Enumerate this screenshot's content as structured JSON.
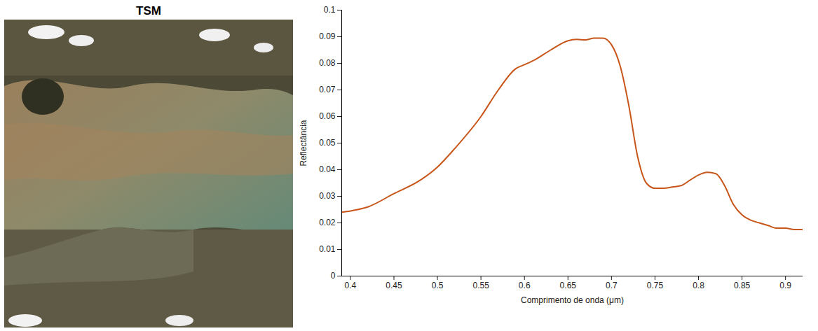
{
  "image_panel": {
    "title": "TSM"
  },
  "chart_data": {
    "type": "line",
    "xlabel": "Comprimento de onda (μm)",
    "ylabel": "Reflectância",
    "x": [
      0.39,
      0.4,
      0.42,
      0.45,
      0.48,
      0.5,
      0.52,
      0.55,
      0.57,
      0.59,
      0.6,
      0.61,
      0.63,
      0.65,
      0.66,
      0.67,
      0.68,
      0.69,
      0.7,
      0.71,
      0.72,
      0.73,
      0.74,
      0.75,
      0.76,
      0.77,
      0.78,
      0.79,
      0.8,
      0.81,
      0.82,
      0.83,
      0.84,
      0.85,
      0.86,
      0.87,
      0.88,
      0.89,
      0.9,
      0.91,
      0.92
    ],
    "values": [
      0.024,
      0.0245,
      0.026,
      0.031,
      0.036,
      0.041,
      0.048,
      0.06,
      0.07,
      0.078,
      0.0795,
      0.081,
      0.085,
      0.0885,
      0.089,
      0.0888,
      0.0895,
      0.0895,
      0.087,
      0.079,
      0.064,
      0.045,
      0.035,
      0.033,
      0.033,
      0.0335,
      0.034,
      0.036,
      0.038,
      0.039,
      0.0385,
      0.034,
      0.027,
      0.023,
      0.021,
      0.02,
      0.019,
      0.018,
      0.018,
      0.0175,
      0.0175
    ],
    "color": "#c8561a",
    "xlim": [
      0.39,
      0.92
    ],
    "xticks": [
      0.4,
      0.45,
      0.5,
      0.55,
      0.6,
      0.65,
      0.7,
      0.75,
      0.8,
      0.85,
      0.9
    ],
    "ylim": [
      0,
      0.1
    ],
    "yticks": [
      0,
      0.01,
      0.02,
      0.03,
      0.04,
      0.05,
      0.06,
      0.07,
      0.08,
      0.09,
      0.1
    ],
    "grid": false
  }
}
